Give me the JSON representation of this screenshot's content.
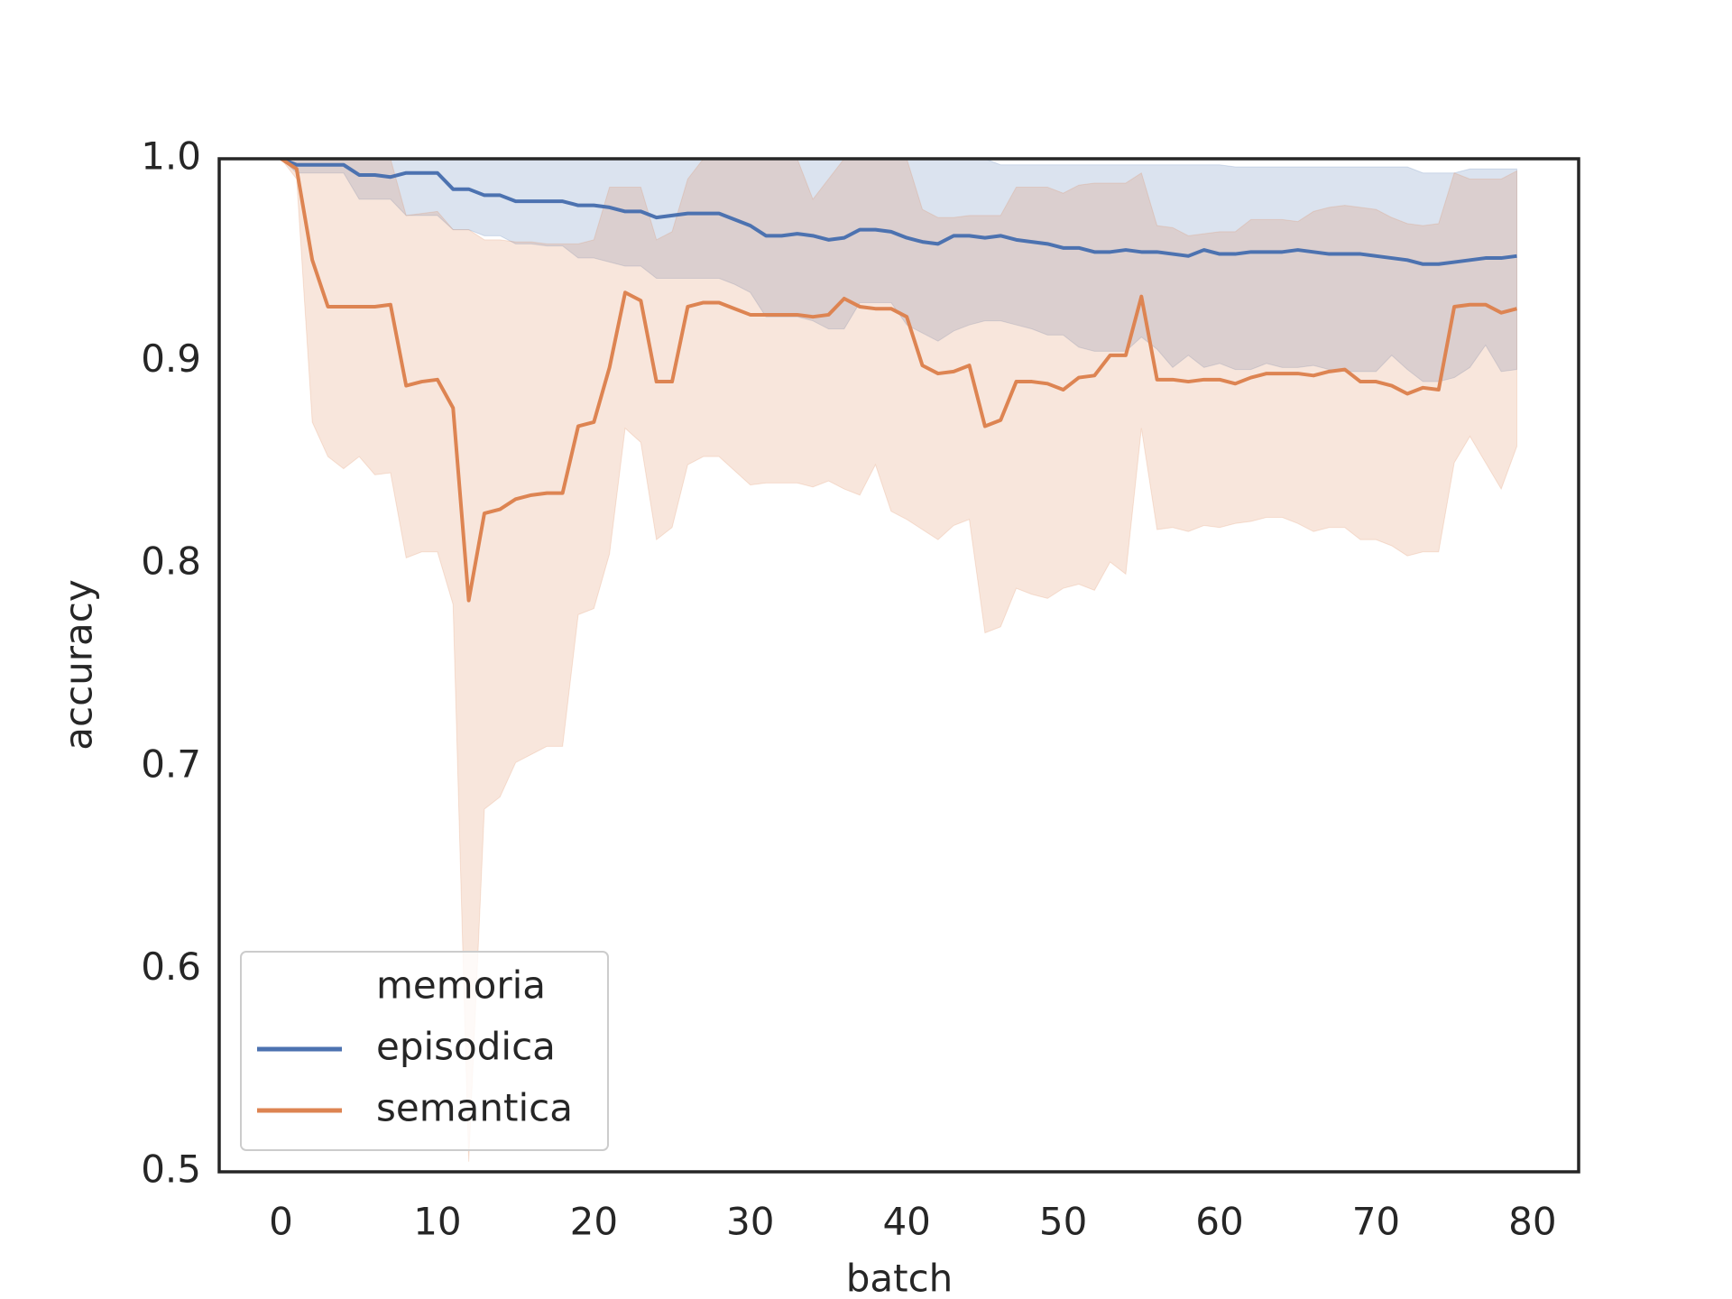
{
  "chart_data": {
    "type": "line_band",
    "xlabel": "batch",
    "ylabel": "accuracy",
    "xlim": [
      -3.95,
      82.95
    ],
    "ylim": [
      0.5,
      1.0
    ],
    "xticks": [
      0,
      10,
      20,
      30,
      40,
      50,
      60,
      70,
      80
    ],
    "yticks": [
      0.5,
      0.6,
      0.7,
      0.8,
      0.9,
      {
        "value": 1.0,
        "label": "1.0"
      }
    ],
    "grid": false,
    "legend_title": "memoria",
    "legend_loc": "lower left",
    "x": [
      0,
      1,
      2,
      3,
      4,
      5,
      6,
      7,
      8,
      9,
      10,
      11,
      12,
      13,
      14,
      15,
      16,
      17,
      18,
      19,
      20,
      21,
      22,
      23,
      24,
      25,
      26,
      27,
      28,
      29,
      30,
      31,
      32,
      33,
      34,
      35,
      36,
      37,
      38,
      39,
      40,
      41,
      42,
      43,
      44,
      45,
      46,
      47,
      48,
      49,
      50,
      51,
      52,
      53,
      54,
      55,
      56,
      57,
      58,
      59,
      60,
      61,
      62,
      63,
      64,
      65,
      66,
      67,
      68,
      69,
      70,
      71,
      72,
      73,
      74,
      75,
      76,
      77,
      78,
      79
    ],
    "series": [
      {
        "name": "episodica",
        "color": "#4c72b0",
        "values": [
          1.0,
          0.997,
          0.997,
          0.997,
          0.997,
          0.992,
          0.992,
          0.991,
          0.993,
          0.993,
          0.993,
          0.985,
          0.985,
          0.982,
          0.982,
          0.979,
          0.979,
          0.979,
          0.979,
          0.977,
          0.977,
          0.976,
          0.974,
          0.974,
          0.971,
          0.972,
          0.973,
          0.973,
          0.973,
          0.97,
          0.967,
          0.962,
          0.962,
          0.963,
          0.962,
          0.96,
          0.961,
          0.965,
          0.965,
          0.964,
          0.961,
          0.959,
          0.958,
          0.962,
          0.962,
          0.961,
          0.962,
          0.96,
          0.959,
          0.958,
          0.956,
          0.956,
          0.954,
          0.954,
          0.955,
          0.954,
          0.954,
          0.953,
          0.952,
          0.955,
          0.953,
          0.953,
          0.954,
          0.954,
          0.954,
          0.955,
          0.954,
          0.953,
          0.953,
          0.953,
          0.952,
          0.951,
          0.95,
          0.948,
          0.948,
          0.949,
          0.95,
          0.951,
          0.951,
          0.952
        ],
        "lower": [
          1.0,
          0.993,
          0.993,
          0.993,
          0.993,
          0.98,
          0.98,
          0.98,
          0.972,
          0.972,
          0.972,
          0.965,
          0.965,
          0.962,
          0.962,
          0.958,
          0.958,
          0.957,
          0.957,
          0.951,
          0.951,
          0.949,
          0.947,
          0.947,
          0.941,
          0.941,
          0.941,
          0.941,
          0.941,
          0.938,
          0.934,
          0.922,
          0.922,
          0.922,
          0.92,
          0.916,
          0.916,
          0.929,
          0.929,
          0.929,
          0.918,
          0.914,
          0.91,
          0.915,
          0.918,
          0.92,
          0.92,
          0.918,
          0.916,
          0.913,
          0.913,
          0.907,
          0.905,
          0.905,
          0.905,
          0.912,
          0.906,
          0.897,
          0.903,
          0.897,
          0.899,
          0.896,
          0.896,
          0.899,
          0.897,
          0.897,
          0.898,
          0.896,
          0.895,
          0.895,
          0.895,
          0.903,
          0.896,
          0.89,
          0.89,
          0.892,
          0.897,
          0.908,
          0.895,
          0.896
        ],
        "upper": [
          1.0,
          1.0,
          1.0,
          1.0,
          1.0,
          1.0,
          1.0,
          1.0,
          1.0,
          1.0,
          1.0,
          1.0,
          1.0,
          1.0,
          1.0,
          1.0,
          1.0,
          1.0,
          1.0,
          1.0,
          1.0,
          1.0,
          1.0,
          1.0,
          1.0,
          1.0,
          1.0,
          1.0,
          1.0,
          1.0,
          1.0,
          1.0,
          1.0,
          1.0,
          1.0,
          1.0,
          1.0,
          1.0,
          1.0,
          1.0,
          1.0,
          1.0,
          1.0,
          1.0,
          1.0,
          1.0,
          0.997,
          0.997,
          0.997,
          0.997,
          0.997,
          0.997,
          0.997,
          0.997,
          0.997,
          0.997,
          0.997,
          0.997,
          0.997,
          0.997,
          0.997,
          0.996,
          0.996,
          0.996,
          0.996,
          0.996,
          0.996,
          0.996,
          0.996,
          0.996,
          0.996,
          0.996,
          0.996,
          0.993,
          0.993,
          0.993,
          0.995,
          0.995,
          0.995,
          0.995
        ]
      },
      {
        "name": "semantica",
        "color": "#dd8452",
        "values": [
          1.0,
          0.995,
          0.95,
          0.927,
          0.927,
          0.927,
          0.927,
          0.928,
          0.888,
          0.89,
          0.891,
          0.877,
          0.782,
          0.825,
          0.827,
          0.832,
          0.834,
          0.835,
          0.835,
          0.868,
          0.87,
          0.897,
          0.934,
          0.93,
          0.89,
          0.89,
          0.927,
          0.929,
          0.929,
          0.926,
          0.923,
          0.923,
          0.923,
          0.923,
          0.922,
          0.923,
          0.931,
          0.927,
          0.926,
          0.926,
          0.922,
          0.898,
          0.894,
          0.895,
          0.898,
          0.868,
          0.871,
          0.89,
          0.89,
          0.889,
          0.886,
          0.892,
          0.893,
          0.903,
          0.903,
          0.932,
          0.891,
          0.891,
          0.89,
          0.891,
          0.891,
          0.889,
          0.892,
          0.894,
          0.894,
          0.894,
          0.893,
          0.895,
          0.896,
          0.89,
          0.89,
          0.888,
          0.884,
          0.887,
          0.886,
          0.927,
          0.928,
          0.928,
          0.924,
          0.926
        ],
        "lower": [
          1.0,
          0.99,
          0.87,
          0.853,
          0.847,
          0.853,
          0.844,
          0.845,
          0.803,
          0.806,
          0.806,
          0.78,
          0.505,
          0.679,
          0.685,
          0.702,
          0.706,
          0.71,
          0.71,
          0.775,
          0.778,
          0.805,
          0.867,
          0.86,
          0.812,
          0.818,
          0.849,
          0.853,
          0.853,
          0.846,
          0.839,
          0.84,
          0.84,
          0.84,
          0.838,
          0.841,
          0.837,
          0.834,
          0.849,
          0.826,
          0.822,
          0.817,
          0.812,
          0.819,
          0.822,
          0.766,
          0.769,
          0.788,
          0.785,
          0.783,
          0.788,
          0.79,
          0.787,
          0.801,
          0.795,
          0.867,
          0.817,
          0.818,
          0.816,
          0.819,
          0.818,
          0.82,
          0.821,
          0.823,
          0.823,
          0.82,
          0.816,
          0.818,
          0.818,
          0.812,
          0.812,
          0.809,
          0.804,
          0.806,
          0.806,
          0.85,
          0.863,
          0.85,
          0.837,
          0.858
        ],
        "upper": [
          1.0,
          1.0,
          1.0,
          1.0,
          1.0,
          1.0,
          1.0,
          1.0,
          0.972,
          0.973,
          0.974,
          0.965,
          0.965,
          0.96,
          0.96,
          0.959,
          0.959,
          0.958,
          0.958,
          0.958,
          0.96,
          0.986,
          0.986,
          0.986,
          0.96,
          0.964,
          0.99,
          1.0,
          1.0,
          1.0,
          1.0,
          1.0,
          1.0,
          1.0,
          0.98,
          0.99,
          1.0,
          1.0,
          1.0,
          1.0,
          1.0,
          0.975,
          0.971,
          0.971,
          0.972,
          0.972,
          0.972,
          0.986,
          0.986,
          0.986,
          0.983,
          0.987,
          0.988,
          0.988,
          0.988,
          0.993,
          0.967,
          0.966,
          0.962,
          0.963,
          0.964,
          0.964,
          0.97,
          0.97,
          0.97,
          0.969,
          0.974,
          0.976,
          0.977,
          0.976,
          0.975,
          0.971,
          0.968,
          0.967,
          0.968,
          0.993,
          0.99,
          0.99,
          0.99,
          0.994
        ]
      }
    ]
  }
}
